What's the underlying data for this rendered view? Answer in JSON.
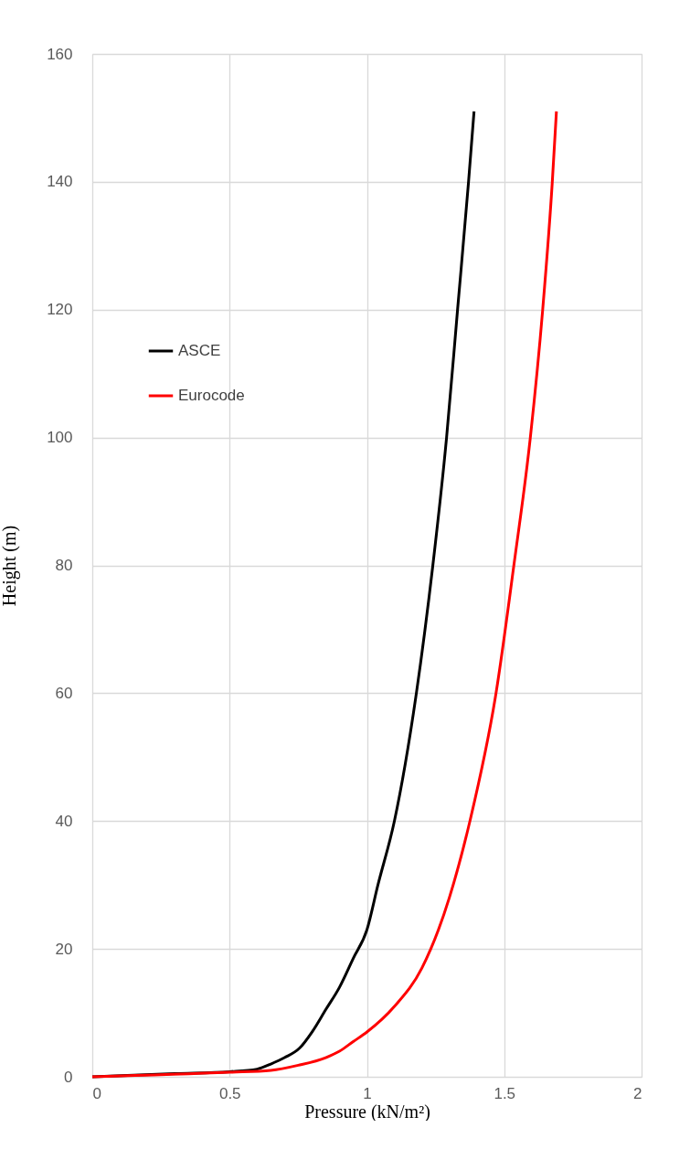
{
  "chart_data": {
    "type": "line",
    "xlabel": "Pressure (kN/m²)",
    "ylabel": "Height (m)",
    "xlim": [
      0,
      2
    ],
    "xticks": [
      0,
      0.5,
      1,
      1.5,
      2
    ],
    "ylim": [
      0,
      160
    ],
    "yticks": [
      0,
      20,
      40,
      60,
      80,
      100,
      120,
      140,
      160
    ],
    "grid": true,
    "legend": "top left",
    "marker": "none",
    "line_style": "solid",
    "series": [
      {
        "name": "ASCE",
        "color": "#000000",
        "x": [
          0,
          0.3,
          0.5,
          0.6,
          0.65,
          0.7,
          0.755,
          0.8,
          0.85,
          0.9,
          0.95,
          1.0,
          1.04,
          1.1,
          1.18,
          1.24,
          1.29,
          1.33,
          1.37,
          1.39
        ],
        "values": [
          0,
          0.5,
          0.8,
          1.2,
          2,
          3,
          4.5,
          7,
          10.5,
          14,
          18.5,
          23,
          30,
          40,
          60,
          80,
          100,
          120,
          140,
          151
        ]
      },
      {
        "name": "Eurocode",
        "color": "#ff0000",
        "x": [
          0,
          0.5,
          0.65,
          0.75,
          0.85,
          0.9,
          0.95,
          1.0,
          1.1,
          1.2,
          1.3,
          1.375,
          1.47,
          1.535,
          1.595,
          1.64,
          1.675,
          1.69
        ],
        "values": [
          0,
          0.7,
          1,
          1.8,
          3,
          4,
          5.5,
          7,
          11,
          17,
          28,
          40,
          60,
          80,
          100,
          120,
          140,
          151
        ]
      }
    ]
  }
}
